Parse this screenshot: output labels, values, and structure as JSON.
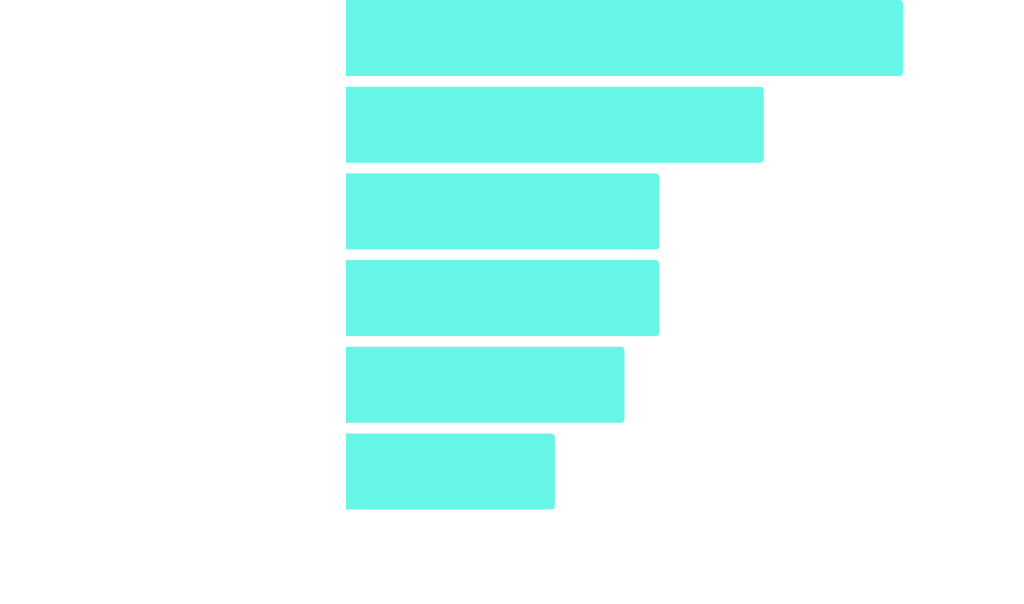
{
  "chart_data": {
    "type": "hbar",
    "categories": [
      null,
      null,
      null,
      null,
      null,
      null
    ],
    "values": [
      16,
      12,
      9,
      9,
      8,
      6
    ],
    "color": "#66f5e7",
    "xlim": [
      0,
      16
    ]
  }
}
